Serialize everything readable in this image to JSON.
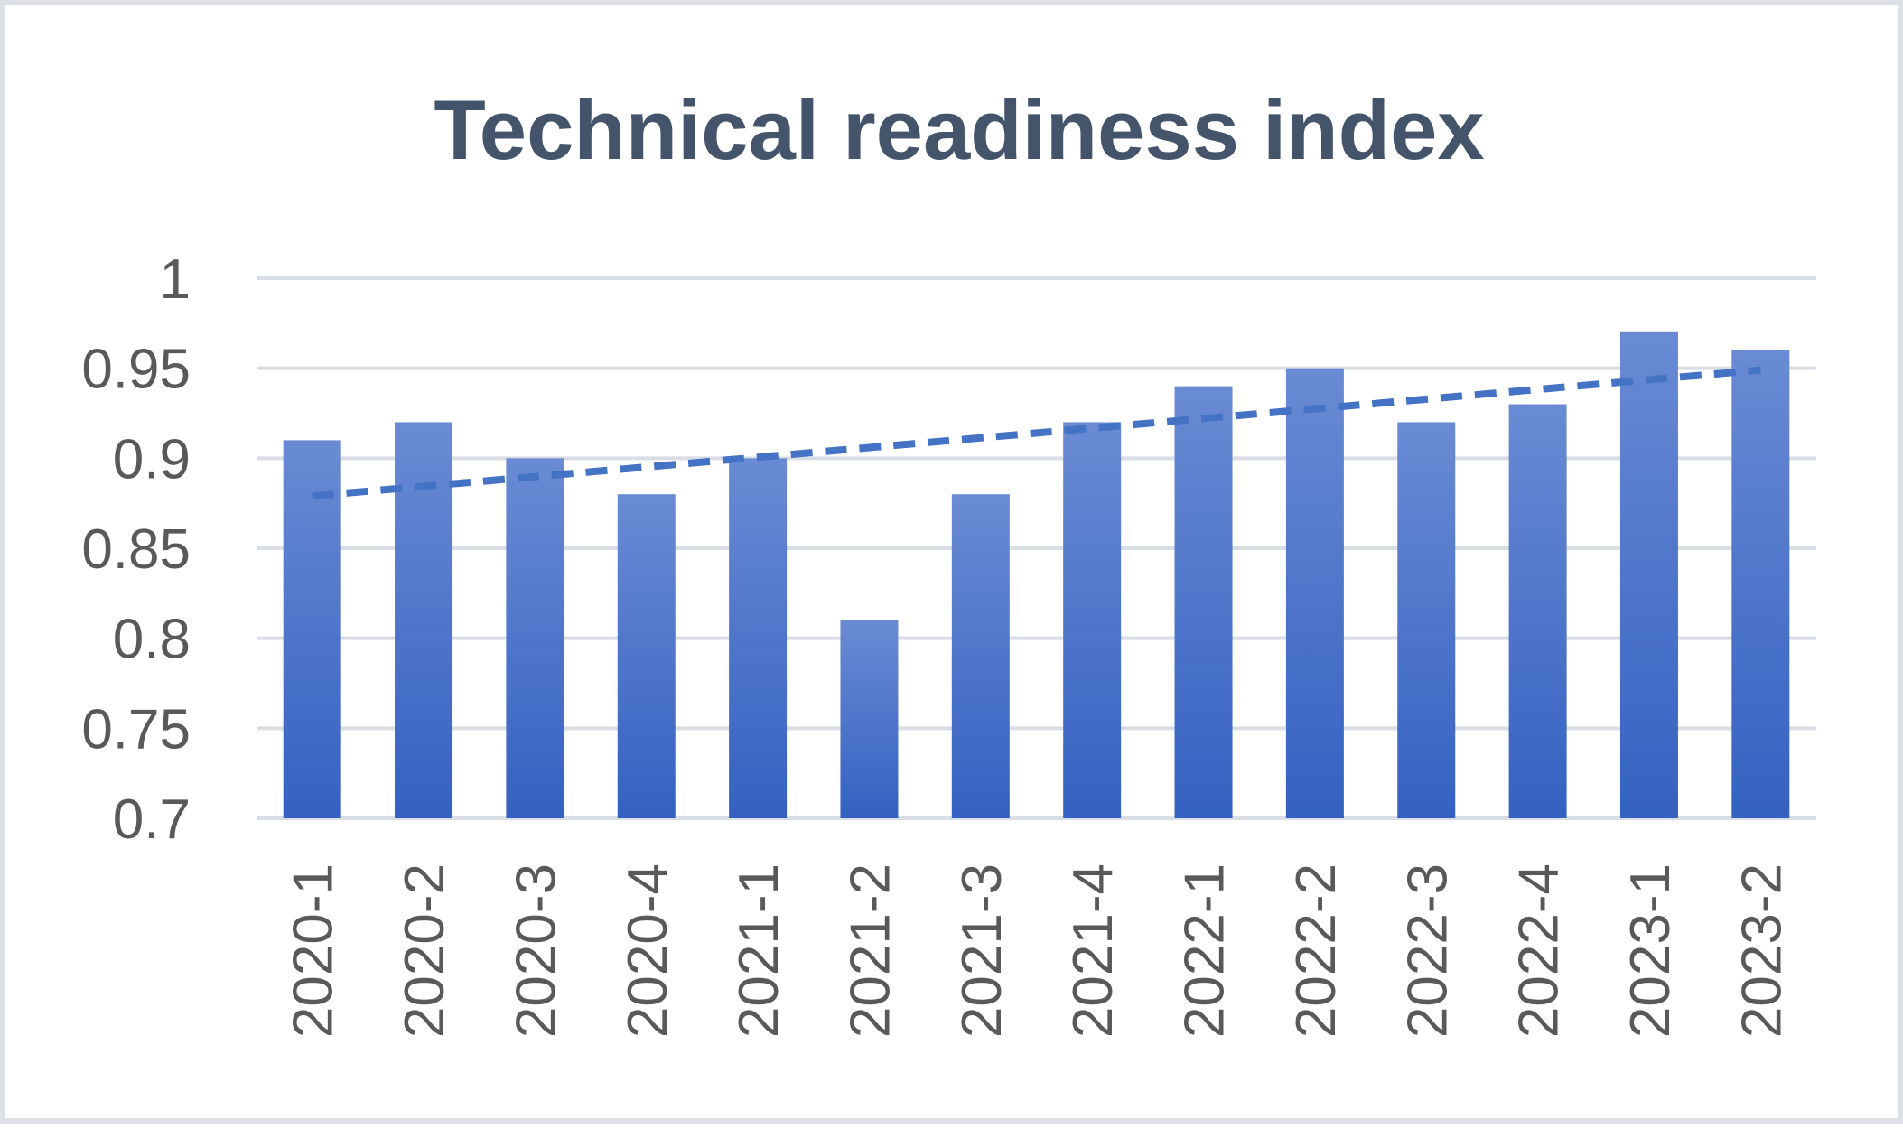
{
  "chart_data": {
    "type": "bar",
    "title": "Technical readiness index",
    "categories": [
      "2020-1",
      "2020-2",
      "2020-3",
      "2020-4",
      "2021-1",
      "2021-2",
      "2021-3",
      "2021-4",
      "2022-1",
      "2022-2",
      "2022-3",
      "2022-4",
      "2023-1",
      "2023-2"
    ],
    "values": [
      0.91,
      0.92,
      0.9,
      0.88,
      0.9,
      0.81,
      0.88,
      0.92,
      0.94,
      0.95,
      0.92,
      0.93,
      0.97,
      0.96
    ],
    "ylim": [
      0.7,
      1.0
    ],
    "yticks": [
      "0.7",
      "0.75",
      "0.8",
      "0.85",
      "0.9",
      "0.95",
      "1"
    ],
    "grid": true,
    "trendline": {
      "type": "linear",
      "style": "dashed",
      "start": 0.879,
      "end": 0.949
    },
    "colors": {
      "bar_top": "#6a8bd4",
      "bar_bottom": "#3461c1",
      "trendline": "#4472c4",
      "grid": "#d9dee5",
      "title": "#44546a",
      "tick": "#595959"
    }
  }
}
